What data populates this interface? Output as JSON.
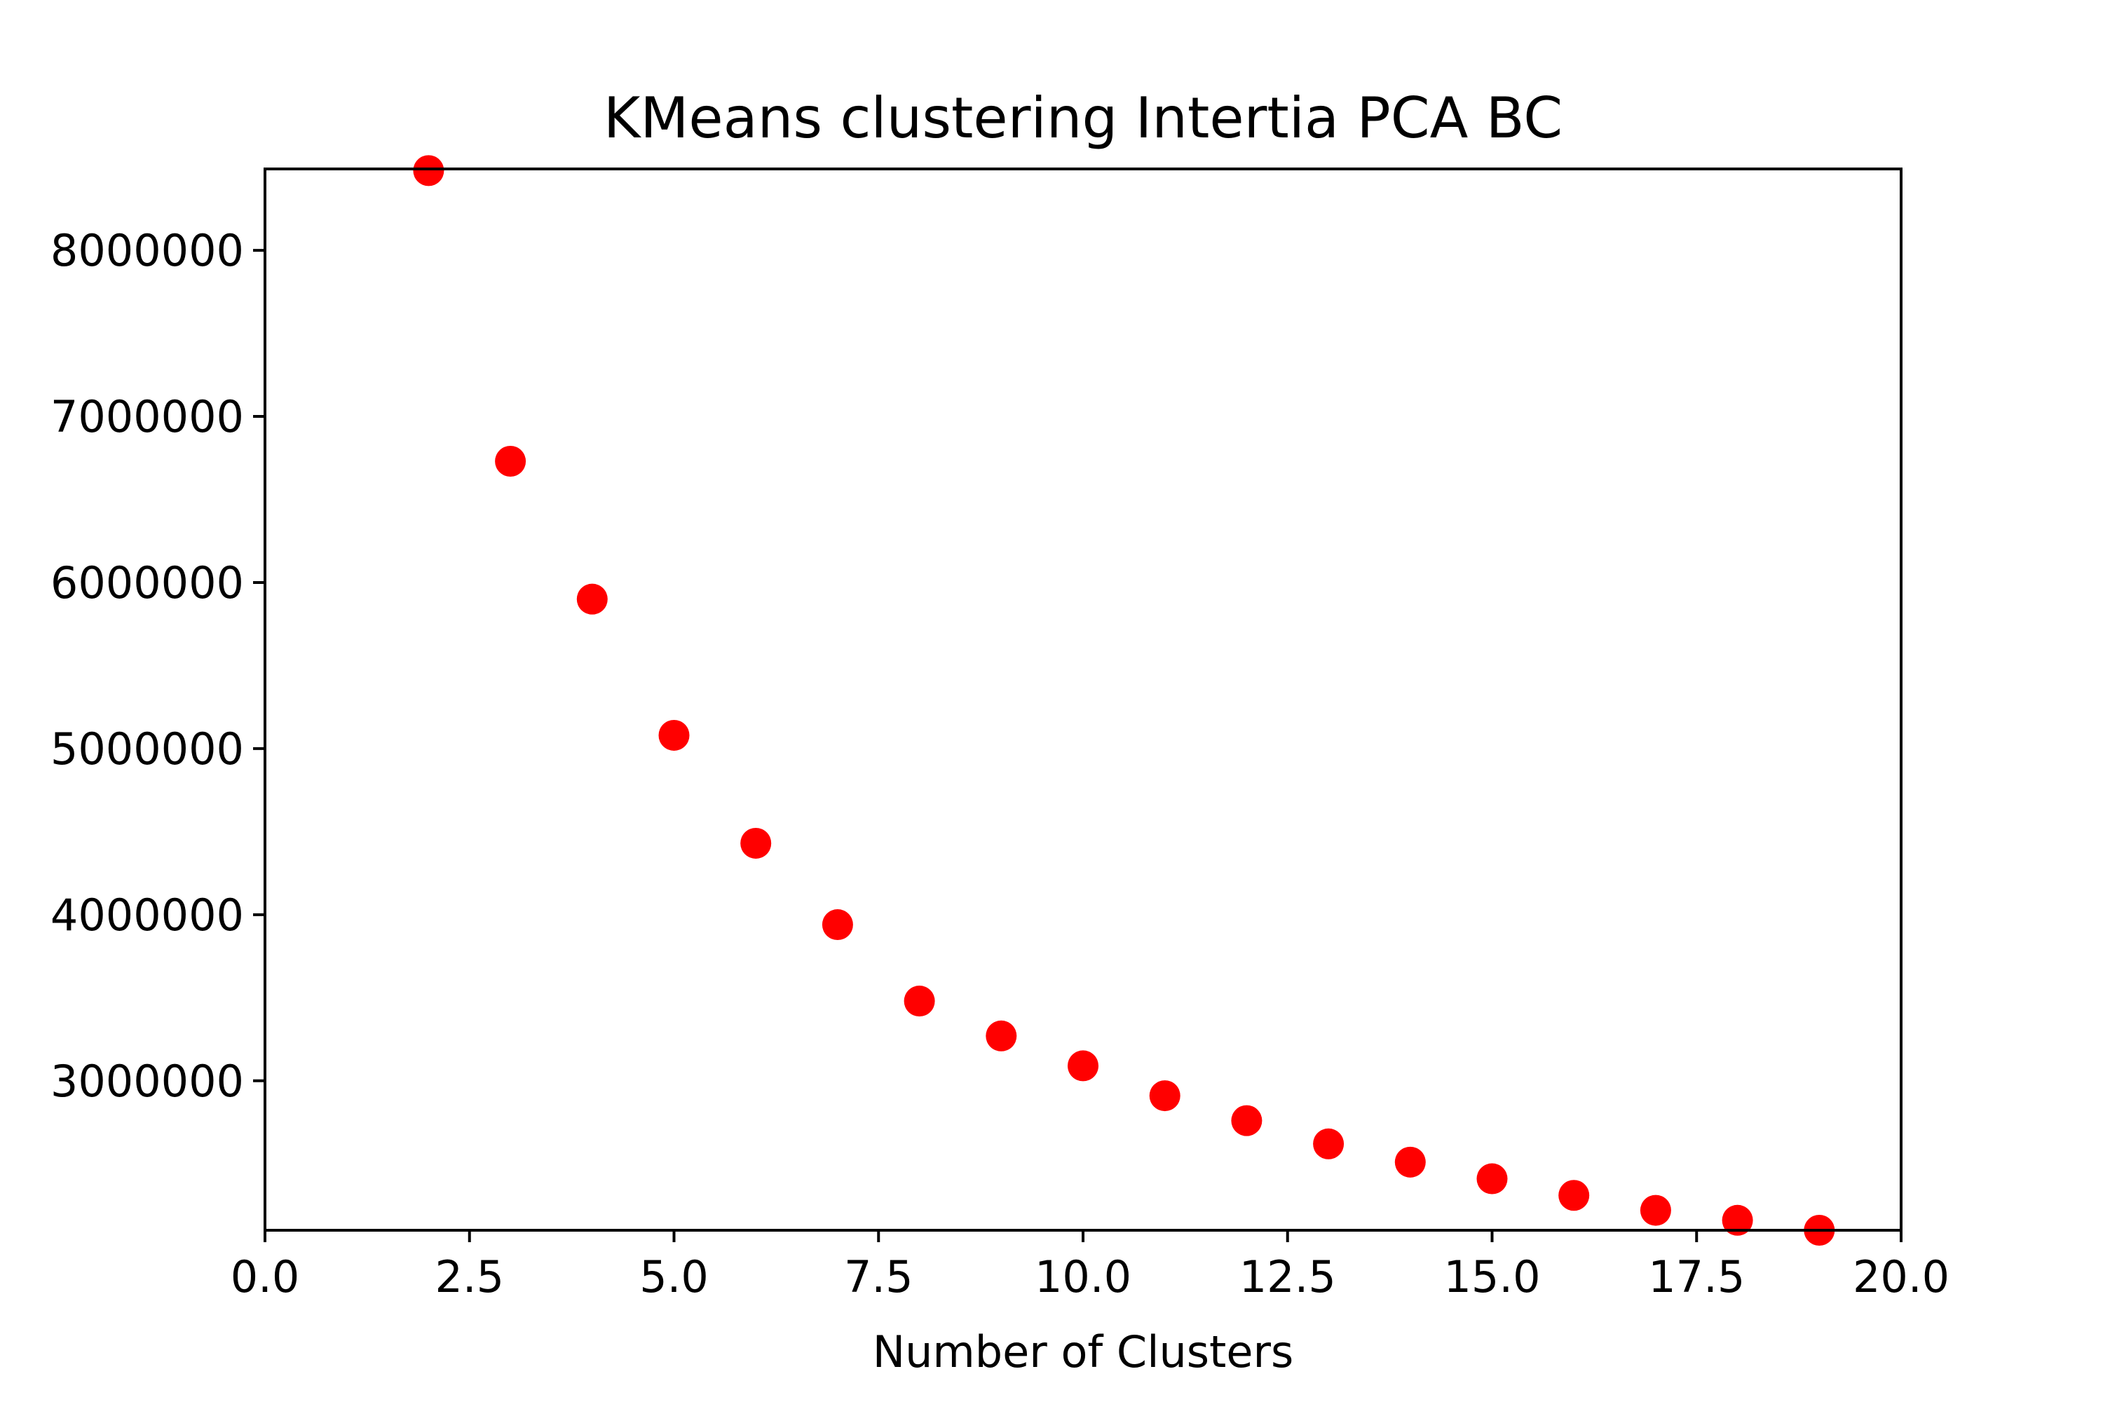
{
  "chart_data": {
    "type": "scatter",
    "title": "KMeans clustering Intertia PCA BC",
    "xlabel": "Number of Clusters",
    "ylabel": "",
    "xlim": [
      0,
      20
    ],
    "ylim": [
      2100000,
      8490000
    ],
    "xticks": [
      0,
      2.5,
      5,
      7.5,
      10,
      12.5,
      15,
      17.5,
      20
    ],
    "xtick_labels": [
      "0.0",
      "2.5",
      "5.0",
      "7.5",
      "10.0",
      "12.5",
      "15.0",
      "17.5",
      "20.0"
    ],
    "yticks": [
      3000000,
      4000000,
      5000000,
      6000000,
      7000000,
      8000000
    ],
    "ytick_labels": [
      "3000000",
      "4000000",
      "5000000",
      "6000000",
      "7000000",
      "8000000"
    ],
    "grid": false,
    "legend": "none",
    "marker_color": "#ff0000",
    "x": [
      2,
      3,
      4,
      5,
      6,
      7,
      8,
      9,
      10,
      11,
      12,
      13,
      14,
      15,
      16,
      17,
      18,
      19
    ],
    "y": [
      8480000,
      6730000,
      5900000,
      5080000,
      4430000,
      3940000,
      3480000,
      3270000,
      3090000,
      2910000,
      2760000,
      2620000,
      2510000,
      2410000,
      2310000,
      2220000,
      2160000,
      2100000
    ]
  }
}
